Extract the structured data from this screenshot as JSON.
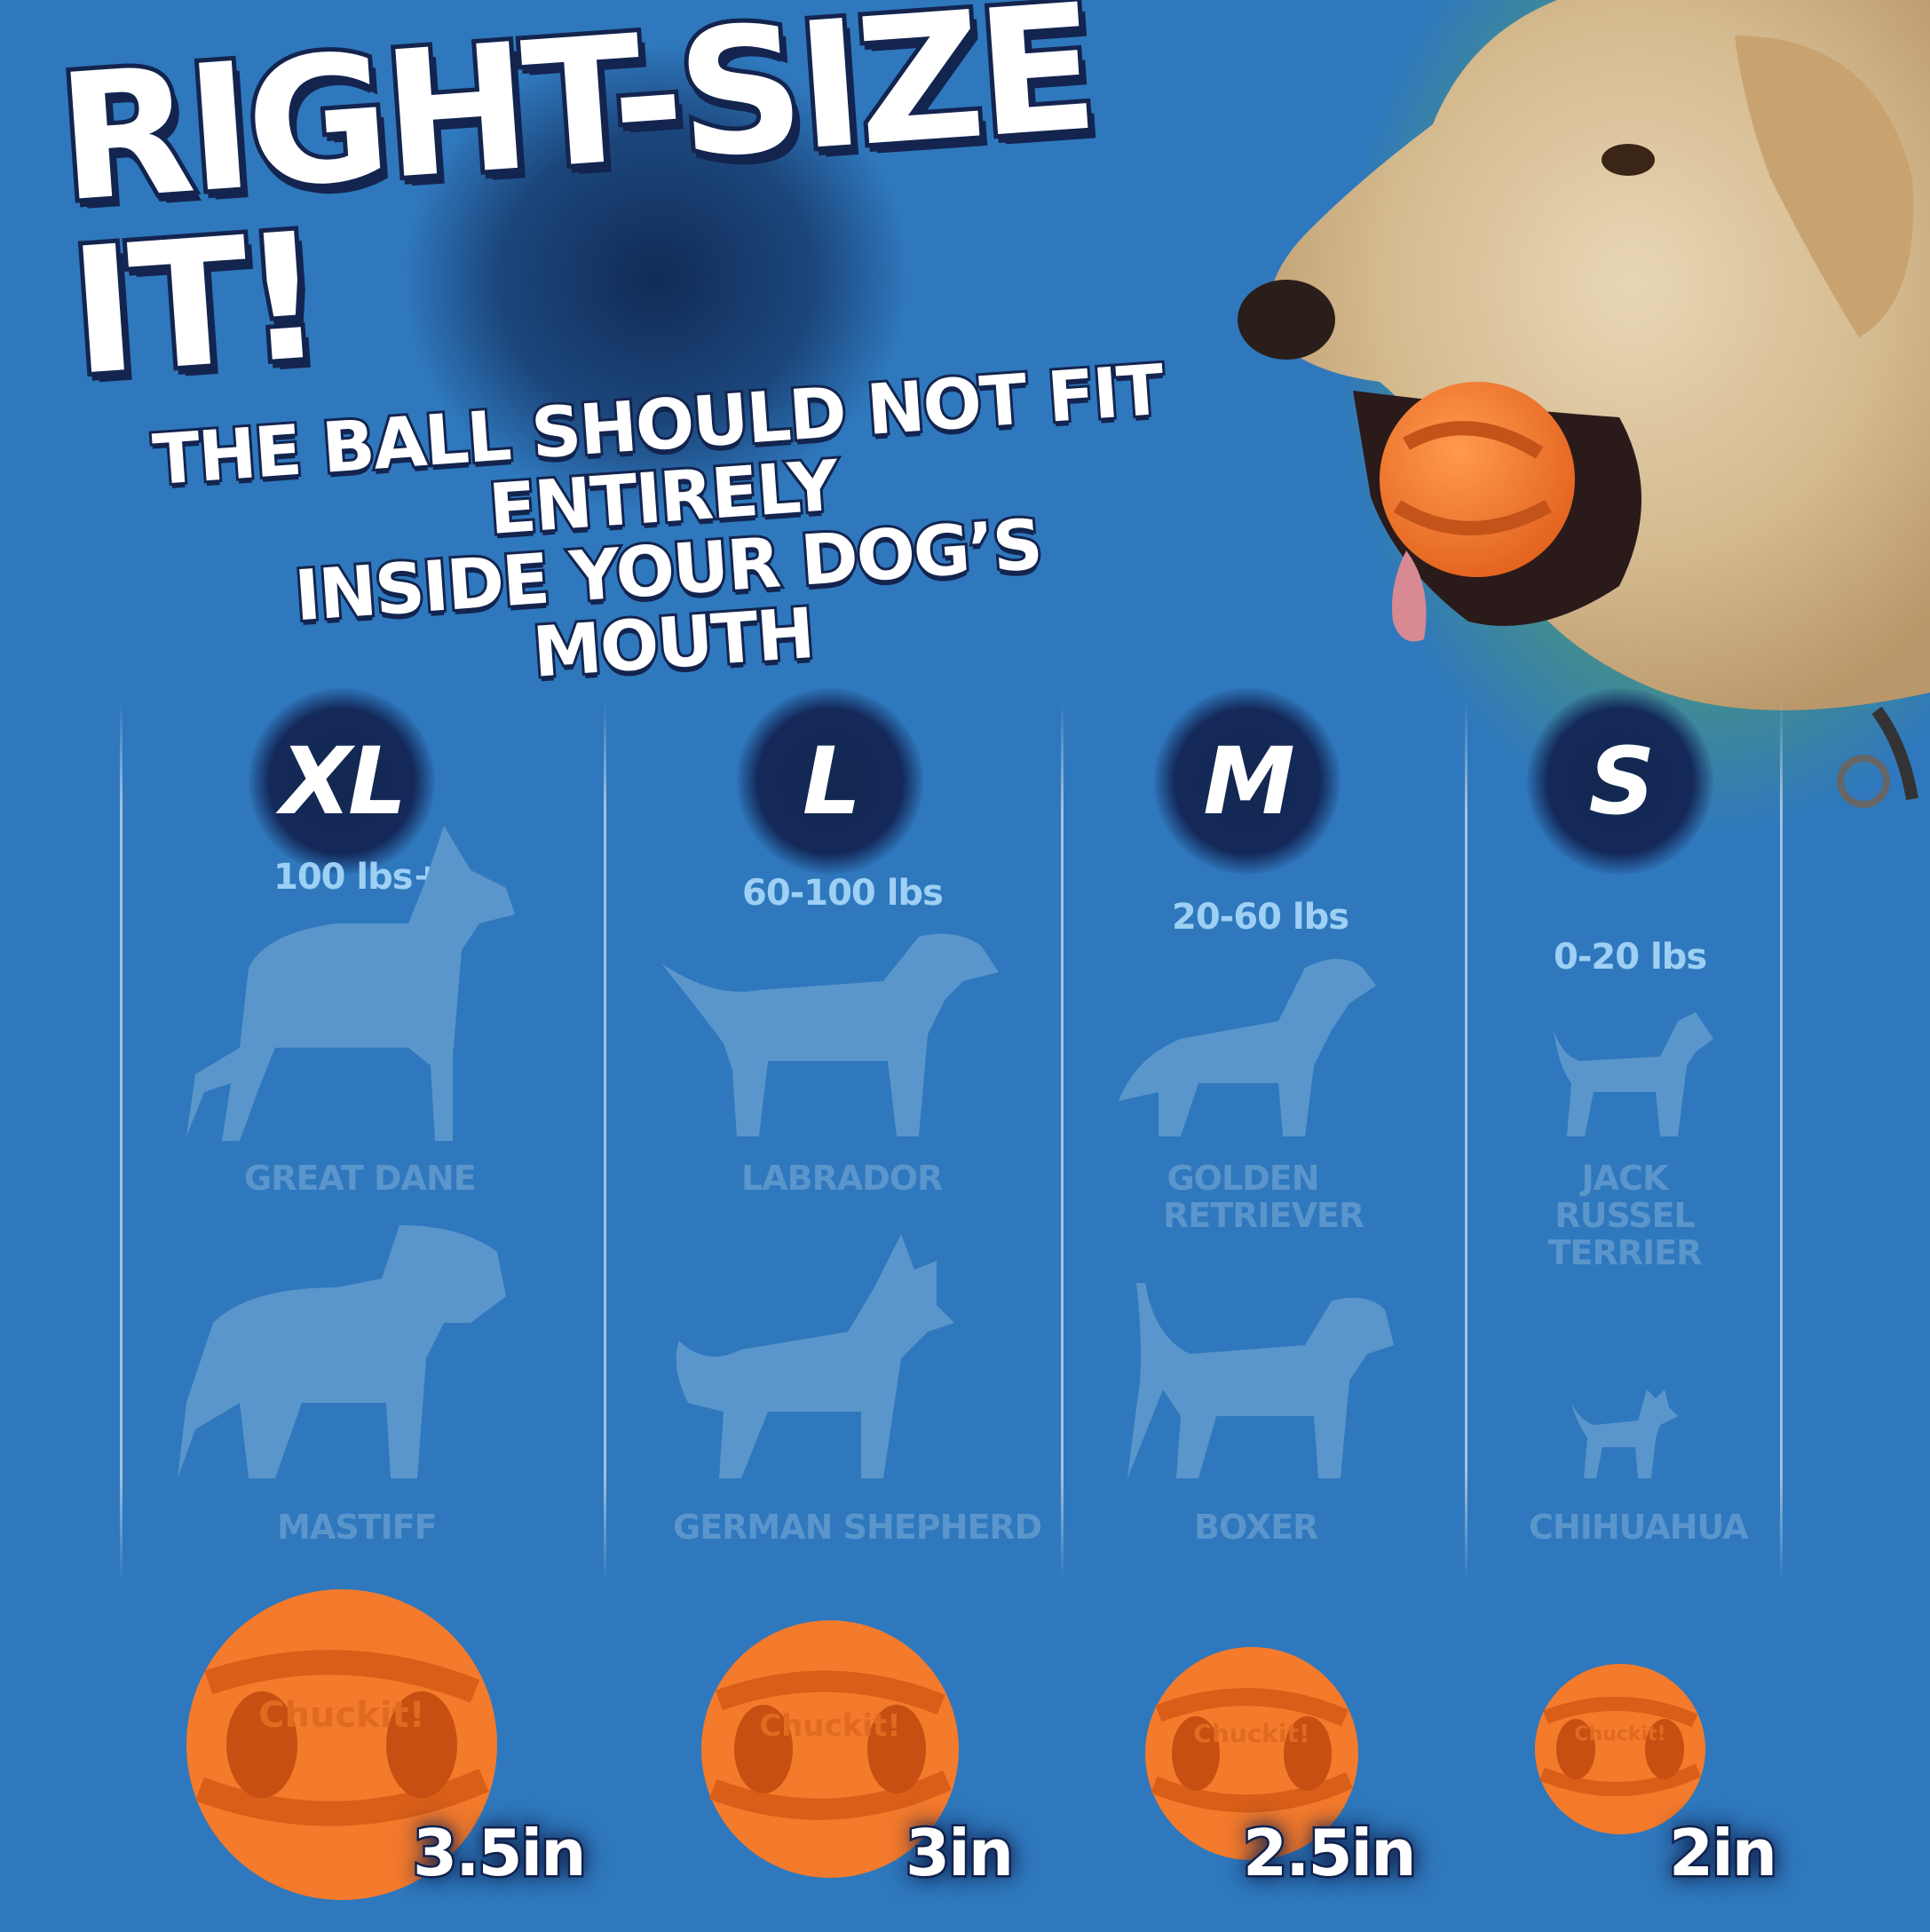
{
  "headline": {
    "title": "RIGHT-SIZE IT!",
    "subtitle_line1": "THE BALL SHOULD NOT FIT ENTIRELY",
    "subtitle_line2": "INSIDE YOUR DOG’S MOUTH"
  },
  "brand_on_ball": "Chuckit!",
  "colors": {
    "background": "#2f78bd",
    "badge": "#14295a",
    "weight_text": "#9ed0f5",
    "breed_text": "#5a95cc",
    "ball_orange": "#f47a2c"
  },
  "sizes": [
    {
      "size": "XL",
      "weight": "100 lbs+",
      "breeds": [
        "GREAT DANE",
        "MASTIFF"
      ],
      "ball_diameter": "3.5in"
    },
    {
      "size": "L",
      "weight": "60-100 lbs",
      "breeds": [
        "LABRADOR",
        "GERMAN SHEPHERD"
      ],
      "ball_diameter": "3in"
    },
    {
      "size": "M",
      "weight": "20-60 lbs",
      "breeds": [
        "GOLDEN RETRIEVER",
        "BOXER"
      ],
      "ball_diameter": "2.5in"
    },
    {
      "size": "S",
      "weight": "0-20 lbs",
      "breeds": [
        "JACK RUSSEL TERRIER",
        "CHIHUAHUA"
      ],
      "ball_diameter": "2in"
    }
  ]
}
